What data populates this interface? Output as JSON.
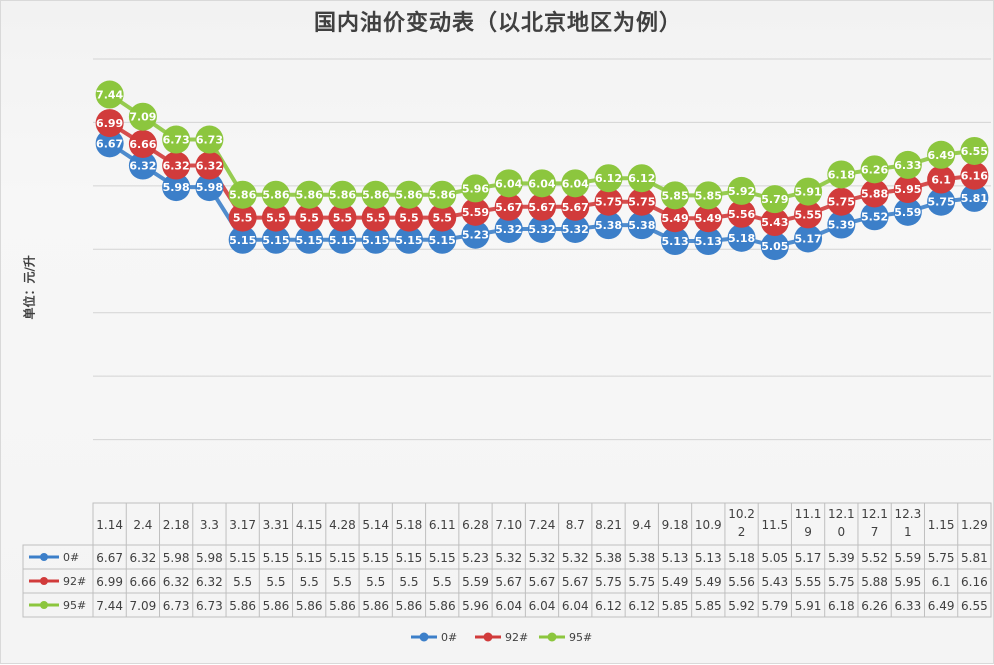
{
  "chart_data": {
    "type": "line",
    "title": "国内油价变动表（以北京地区为例）",
    "ylabel": "单位：元/升",
    "xlabel": "",
    "categories": [
      "1.14",
      "2.4",
      "2.18",
      "3.3",
      "3.17",
      "3.31",
      "4.15",
      "4.28",
      "5.14",
      "5.18",
      "6.11",
      "6.28",
      "7.10",
      "7.24",
      "8.7",
      "8.21",
      "9.4",
      "9.18",
      "10.9",
      "10.22",
      "11.5",
      "11.19",
      "12.10",
      "12.17",
      "12.31",
      "1.15",
      "1.29"
    ],
    "category_display": [
      "1.14",
      "2.4",
      "2.18",
      "3.3",
      "3.17",
      "3.31",
      "4.15",
      "4.28",
      "5.14",
      "5.18",
      "6.11",
      "6.28",
      "7.10",
      "7.24",
      "8.7",
      "8.21",
      "9.4",
      "9.18",
      "10.9",
      "10.2\n2",
      "11.5",
      "11.1\n9",
      "12.1\n0",
      "12.1\n7",
      "12.3\n1",
      "1.15",
      "1.29"
    ],
    "ylim": [
      1,
      8
    ],
    "grid": true,
    "legend_position": "bottom",
    "data_labels": true,
    "data_table": true,
    "series": [
      {
        "name": "0#",
        "color": "#3c7fc9",
        "values": [
          6.67,
          6.32,
          5.98,
          5.98,
          5.15,
          5.15,
          5.15,
          5.15,
          5.15,
          5.15,
          5.15,
          5.23,
          5.32,
          5.32,
          5.32,
          5.38,
          5.38,
          5.13,
          5.13,
          5.18,
          5.05,
          5.17,
          5.39,
          5.52,
          5.59,
          5.75,
          5.81
        ]
      },
      {
        "name": "92#",
        "color": "#d13b3b",
        "values": [
          6.99,
          6.66,
          6.32,
          6.32,
          5.5,
          5.5,
          5.5,
          5.5,
          5.5,
          5.5,
          5.5,
          5.59,
          5.67,
          5.67,
          5.67,
          5.75,
          5.75,
          5.49,
          5.49,
          5.56,
          5.43,
          5.55,
          5.75,
          5.88,
          5.95,
          6.1,
          6.16
        ]
      },
      {
        "name": "95#",
        "color": "#8cc63e",
        "values": [
          7.44,
          7.09,
          6.73,
          6.73,
          5.86,
          5.86,
          5.86,
          5.86,
          5.86,
          5.86,
          5.86,
          5.96,
          6.04,
          6.04,
          6.04,
          6.12,
          6.12,
          5.85,
          5.85,
          5.92,
          5.79,
          5.91,
          6.18,
          6.26,
          6.33,
          6.49,
          6.55
        ]
      }
    ]
  }
}
